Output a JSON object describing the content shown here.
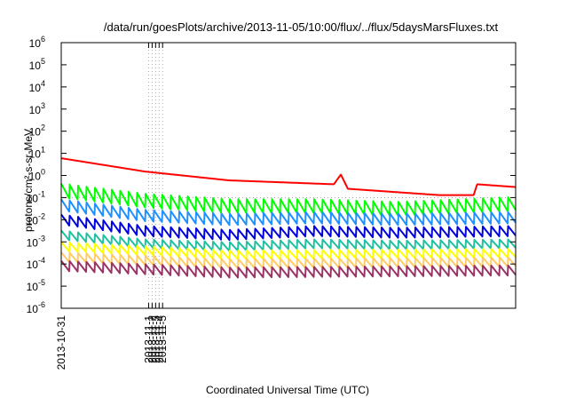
{
  "chart_data": {
    "type": "line",
    "title": "/data/run/goesPlots/archive/2013-11-05/10:00/flux/../flux/5daysMarsFluxes.txt",
    "xlabel": "Coordinated Universal Time (UTC)",
    "ylabel": "protons/cm²-s-sr-MeV",
    "x_ticks": [
      "2013-10-31",
      "2013-11-1",
      "2013-11-2",
      "2013-11-3",
      "2013-11-4",
      "2013-11-5"
    ],
    "xlim": [
      "2013-10-31",
      "2013-11-05T10:00"
    ],
    "y_scale": "log",
    "ylim": [
      1e-06,
      1000000.0
    ],
    "y_ticks": [
      {
        "base": "10",
        "exp": "-6"
      },
      {
        "base": "10",
        "exp": "-5"
      },
      {
        "base": "10",
        "exp": "-4"
      },
      {
        "base": "10",
        "exp": "-3"
      },
      {
        "base": "10",
        "exp": "-2"
      },
      {
        "base": "10",
        "exp": "-1"
      },
      {
        "base": "10",
        "exp": "0"
      },
      {
        "base": "10",
        "exp": "1"
      },
      {
        "base": "10",
        "exp": "2"
      },
      {
        "base": "10",
        "exp": "3"
      },
      {
        "base": "10",
        "exp": "4"
      },
      {
        "base": "10",
        "exp": "5"
      },
      {
        "base": "10",
        "exp": "6"
      }
    ],
    "grid": "vertical dotted at day boundaries, horizontal dotted at 10^-1",
    "series": [
      {
        "color": "#ff0000",
        "values": [
          {
            "x": "2013-10-31T00:00",
            "y": 6
          },
          {
            "x": "2013-10-31T12:00",
            "y": 3
          },
          {
            "x": "2013-11-01T00:00",
            "y": 1.5
          },
          {
            "x": "2013-11-02T00:00",
            "y": 0.6
          },
          {
            "x": "2013-11-03T06:00",
            "y": 0.4
          },
          {
            "x": "2013-11-03T08:00",
            "y": 1.1
          },
          {
            "x": "2013-11-03T10:00",
            "y": 0.25
          },
          {
            "x": "2013-11-04T12:00",
            "y": 0.13
          },
          {
            "x": "2013-11-04T22:00",
            "y": 0.13
          },
          {
            "x": "2013-11-04T23:00",
            "y": 0.4
          },
          {
            "x": "2013-11-05T10:00",
            "y": 0.3
          }
        ]
      },
      {
        "color": "#00ff00",
        "values": [
          {
            "x": "2013-10-31T00:00",
            "y": 0.2
          },
          {
            "x": "2013-11-01T00:00",
            "y": 0.07
          },
          {
            "x": "2013-11-02T00:00",
            "y": 0.04
          },
          {
            "x": "2013-11-03T00:00",
            "y": 0.04
          },
          {
            "x": "2013-11-04T00:00",
            "y": 0.03
          },
          {
            "x": "2013-11-05T10:00",
            "y": 0.05
          }
        ]
      },
      {
        "color": "#1e90ff",
        "values": [
          {
            "x": "2013-10-31T00:00",
            "y": 0.045
          },
          {
            "x": "2013-11-01T00:00",
            "y": 0.015
          },
          {
            "x": "2013-11-02T00:00",
            "y": 0.01
          },
          {
            "x": "2013-11-03T00:00",
            "y": 0.012
          },
          {
            "x": "2013-11-04T00:00",
            "y": 0.01
          },
          {
            "x": "2013-11-05T10:00",
            "y": 0.012
          }
        ]
      },
      {
        "color": "#0000dd",
        "values": [
          {
            "x": "2013-10-31T00:00",
            "y": 0.01
          },
          {
            "x": "2013-11-01T00:00",
            "y": 0.003
          },
          {
            "x": "2013-11-02T00:00",
            "y": 0.002
          },
          {
            "x": "2013-11-03T00:00",
            "y": 0.003
          },
          {
            "x": "2013-11-04T00:00",
            "y": 0.0025
          },
          {
            "x": "2013-11-05T10:00",
            "y": 0.003
          }
        ]
      },
      {
        "color": "#20c0a0",
        "values": [
          {
            "x": "2013-10-31T00:00",
            "y": 0.002
          },
          {
            "x": "2013-11-01T00:00",
            "y": 0.0008
          },
          {
            "x": "2013-11-02T00:00",
            "y": 0.0006
          },
          {
            "x": "2013-11-03T00:00",
            "y": 0.0008
          },
          {
            "x": "2013-11-04T00:00",
            "y": 0.0007
          },
          {
            "x": "2013-11-05T10:00",
            "y": 0.0008
          }
        ]
      },
      {
        "color": "#ffff00",
        "values": [
          {
            "x": "2013-10-31T00:00",
            "y": 0.0006
          },
          {
            "x": "2013-11-02T00:00",
            "y": 0.00025
          },
          {
            "x": "2013-11-05T10:00",
            "y": 0.0003
          }
        ]
      },
      {
        "color": "#ffcc66",
        "values": [
          {
            "x": "2013-10-31T00:00",
            "y": 0.0002
          },
          {
            "x": "2013-11-02T00:00",
            "y": 0.0001
          },
          {
            "x": "2013-11-05T10:00",
            "y": 0.00012
          }
        ]
      },
      {
        "color": "#993366",
        "values": [
          {
            "x": "2013-10-31T00:00",
            "y": 8e-05
          },
          {
            "x": "2013-11-02T00:00",
            "y": 4e-05
          },
          {
            "x": "2013-11-05T10:00",
            "y": 5e-05
          }
        ]
      }
    ]
  }
}
